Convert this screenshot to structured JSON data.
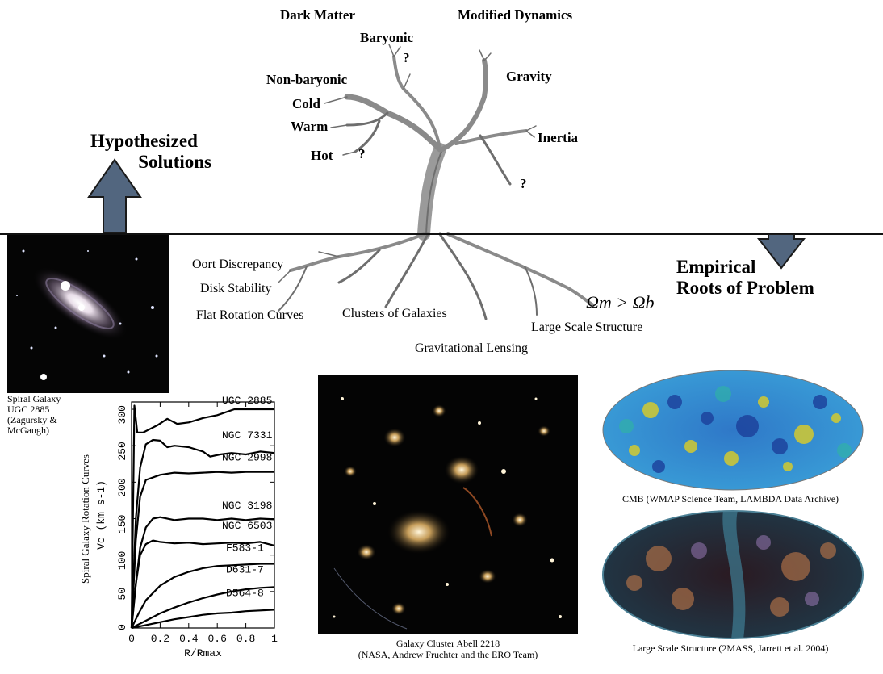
{
  "tree": {
    "top_left_title": "Dark Matter",
    "top_right_title": "Modified Dynamics",
    "branches": {
      "baryonic": "Baryonic",
      "non_baryonic": "Non-baryonic",
      "cold": "Cold",
      "warm": "Warm",
      "hot": "Hot",
      "gravity": "Gravity",
      "inertia": "Inertia",
      "q1": "?",
      "q2": "?",
      "q3": "?"
    },
    "roots": {
      "oort": "Oort Discrepancy",
      "disk": "Disk Stability",
      "flat": "Flat Rotation Curves",
      "clusters": "Clusters of Galaxies",
      "lss": "Large Scale Structure",
      "lensing": "Gravitational Lensing",
      "omega": "Ωm > Ωb"
    }
  },
  "hypothesized": {
    "line1": "Hypothesized",
    "line2": "Solutions"
  },
  "empirical": {
    "line1": "Empirical",
    "line2": "Roots of Problem"
  },
  "galaxy_caption": [
    "Spiral Galaxy",
    "UGC 2885",
    "(Zagursky &",
    "McGaugh)"
  ],
  "cluster_caption": [
    "Galaxy Cluster Abell 2218",
    "(NASA, Andrew Fruchter and the ERO Team)"
  ],
  "cmb_caption": "CMB (WMAP Science Team, LAMBDA Data Archive)",
  "lss_caption": "Large Scale Structure (2MASS, Jarrett et al. 2004)",
  "colors": {
    "arrow": "#52667f",
    "arrow_outline": "#1a1a1a",
    "cmb_blue": "#1c5db8",
    "cmb_yellow": "#e8d21a"
  },
  "chart_data": {
    "type": "line",
    "title": "",
    "ylabel": "Spiral Galaxy Rotation Curves",
    "ylabel2": "Vc (km s-1)",
    "xlabel": "R/Rmax",
    "xlim": [
      0,
      1
    ],
    "ylim": [
      0,
      310
    ],
    "xticks": [
      "0",
      "0.2",
      "0.4",
      "0.6",
      "0.8",
      "1"
    ],
    "yticks": [
      "0",
      "50",
      "100",
      "150",
      "200",
      "250",
      "300"
    ],
    "series": [
      {
        "name": "UGC 2885",
        "x": [
          0,
          0.02,
          0.04,
          0.08,
          0.12,
          0.18,
          0.25,
          0.32,
          0.4,
          0.5,
          0.6,
          0.72,
          0.85,
          1.0
        ],
        "values": [
          0,
          305,
          268,
          268,
          272,
          278,
          287,
          280,
          282,
          288,
          292,
          300,
          300,
          300
        ]
      },
      {
        "name": "NGC 7331",
        "x": [
          0,
          0.03,
          0.06,
          0.1,
          0.15,
          0.2,
          0.25,
          0.3,
          0.4,
          0.5,
          0.55,
          0.62,
          0.7,
          0.8,
          0.9,
          1.0
        ],
        "values": [
          0,
          150,
          220,
          252,
          258,
          257,
          248,
          250,
          248,
          242,
          235,
          238,
          240,
          238,
          242,
          240
        ]
      },
      {
        "name": "NGC 2998",
        "x": [
          0,
          0.03,
          0.06,
          0.1,
          0.2,
          0.3,
          0.4,
          0.5,
          0.6,
          0.7,
          0.8,
          1.0
        ],
        "values": [
          0,
          120,
          180,
          203,
          210,
          213,
          212,
          213,
          214,
          213,
          214,
          214
        ]
      },
      {
        "name": "NGC 3198",
        "x": [
          0,
          0.03,
          0.06,
          0.1,
          0.15,
          0.2,
          0.3,
          0.4,
          0.5,
          0.6,
          0.7,
          0.8,
          0.9,
          1.0
        ],
        "values": [
          0,
          60,
          110,
          138,
          150,
          152,
          148,
          150,
          150,
          148,
          150,
          148,
          150,
          149
        ]
      },
      {
        "name": "NGC 6503",
        "x": [
          0,
          0.03,
          0.06,
          0.1,
          0.15,
          0.2,
          0.3,
          0.4,
          0.5,
          0.6,
          0.7,
          0.8,
          0.9,
          1.0
        ],
        "values": [
          0,
          60,
          100,
          115,
          120,
          118,
          116,
          117,
          115,
          116,
          117,
          116,
          118,
          113
        ]
      },
      {
        "name": "F583-1",
        "x": [
          0,
          0.05,
          0.1,
          0.2,
          0.3,
          0.4,
          0.5,
          0.6,
          0.7,
          0.8,
          0.9,
          1.0
        ],
        "values": [
          0,
          20,
          38,
          58,
          70,
          77,
          82,
          85,
          86,
          87,
          88,
          88
        ]
      },
      {
        "name": "D631-7",
        "x": [
          0,
          0.1,
          0.2,
          0.3,
          0.4,
          0.5,
          0.6,
          0.7,
          0.8,
          0.9,
          1.0
        ],
        "values": [
          0,
          10,
          20,
          28,
          35,
          41,
          46,
          50,
          53,
          55,
          56
        ]
      },
      {
        "name": "D564-8",
        "x": [
          0,
          0.1,
          0.2,
          0.3,
          0.4,
          0.5,
          0.6,
          0.7,
          0.8,
          0.9,
          1.0
        ],
        "values": [
          0,
          4,
          8,
          12,
          15,
          18,
          20,
          21,
          23,
          24,
          25
        ]
      }
    ]
  }
}
